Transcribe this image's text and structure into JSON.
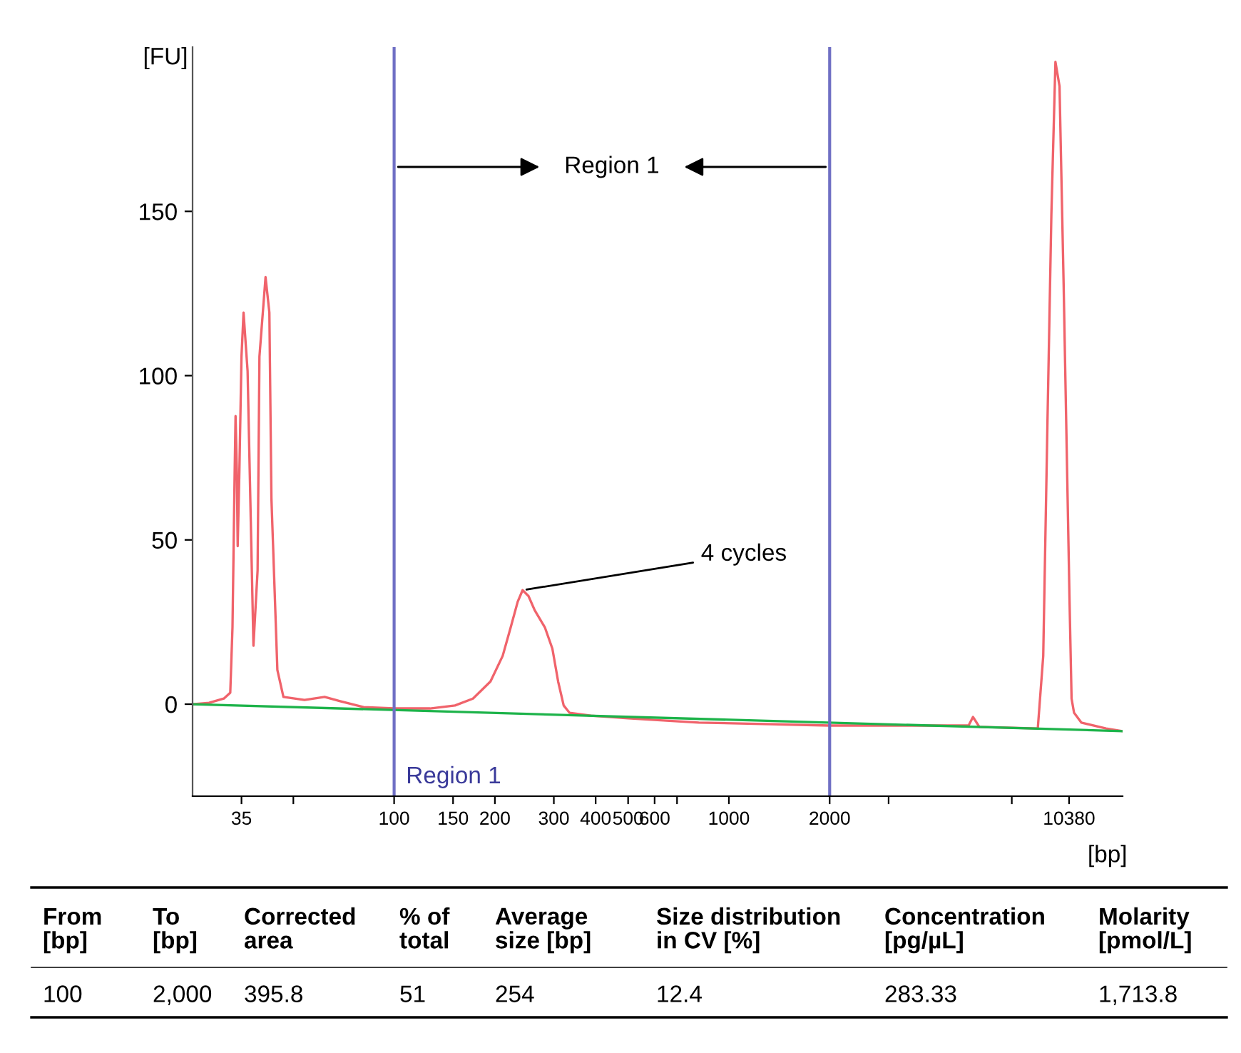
{
  "chart_data": {
    "type": "line",
    "ylabel": "[FU]",
    "xlabel": "[bp]",
    "xlim": [
      25,
      15000
    ],
    "ylim": [
      -28,
      200
    ],
    "xticks": [
      35,
      {
        "value": 50,
        "label": null
      },
      100,
      150,
      200,
      300,
      400,
      500,
      600,
      {
        "value": 700,
        "label": null
      },
      1000,
      2000,
      {
        "value": 3000,
        "label": null
      },
      {
        "value": 7000,
        "label": null
      },
      10380
    ],
    "yticks": [
      0,
      50,
      100,
      150
    ],
    "log": "x",
    "grid": false,
    "legend": false,
    "marker": "none",
    "line_style": "solid",
    "series": [
      {
        "color": "#f0636b",
        "x": [
          25,
          28,
          31,
          32.4,
          32.9,
          33.4,
          33.6,
          33.9,
          34.1,
          34.5,
          35,
          35.5,
          36.5,
          38,
          39.1,
          39.6,
          41.3,
          42.4,
          43,
          44.8,
          46.7,
          54,
          62,
          69,
          81,
          100,
          128,
          152,
          172,
          194,
          211,
          223,
          234,
          242,
          252,
          263,
          282,
          297,
          309,
          321,
          334,
          387,
          500,
          813,
          2000,
          5200,
          5360,
          5600,
          8370,
          8690,
          8940,
          9190,
          9450,
          9720,
          10000,
          10410,
          10560,
          10740,
          11290,
          13390,
          15000
        ],
        "values": [
          0,
          0.4,
          1.7,
          3.5,
          23.4,
          71.1,
          87.7,
          71.1,
          48.1,
          71.1,
          105.8,
          119.2,
          101.4,
          17.8,
          40.7,
          105.8,
          130.0,
          119.2,
          62.8,
          10.4,
          2.2,
          1.3,
          2.2,
          0.9,
          -0.9,
          -1.3,
          -1.3,
          -0.4,
          1.7,
          6.9,
          14.7,
          23.4,
          31.2,
          34.7,
          32.9,
          28.6,
          23.4,
          16.9,
          6.9,
          -0.4,
          -2.6,
          -3.5,
          -4.3,
          -5.6,
          -6.5,
          -6.5,
          -3.9,
          -6.9,
          -7.4,
          14.7,
          84.1,
          149.1,
          195.5,
          188.1,
          127.4,
          32.1,
          1.7,
          -2.6,
          -5.6,
          -7.4,
          -8.2
        ]
      },
      {
        "color": "#1db34a",
        "x": [
          25,
          15000
        ],
        "values": [
          0,
          -8.2
        ]
      }
    ],
    "ref_lines": [
      {
        "axis": "x",
        "value": 100,
        "label": "Region 1",
        "color": "#6f6fc4"
      },
      {
        "axis": "x",
        "value": 2000,
        "color": "#6f6fc4"
      }
    ],
    "annotations": [
      "Region 1",
      {
        "text": "4 cycles",
        "x": 242,
        "y": 34.7
      },
      "From\n[bp]",
      "To\n[bp]",
      "Corrected\narea",
      "% of\ntotal",
      "Average\nsize [bp]",
      "Size distribution\nin CV [%]",
      "Concentration\n[pg/µL]",
      "Molarity\n[pmol/L]",
      "100",
      "2,000",
      "395.8",
      "51",
      "254",
      "12.4",
      "283.33",
      "1,713.8"
    ]
  }
}
